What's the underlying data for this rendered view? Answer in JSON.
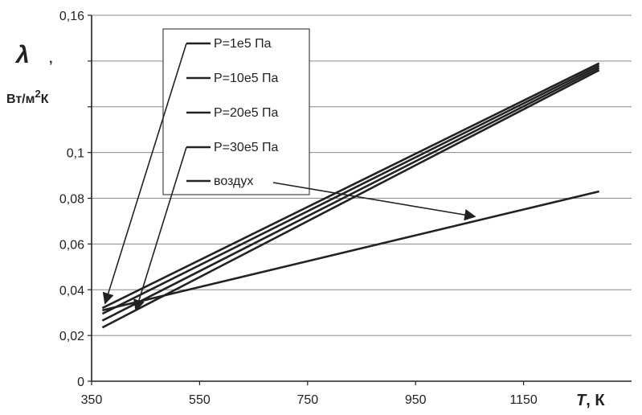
{
  "chart_data": {
    "type": "line",
    "x_axis": {
      "label_symbol": "T",
      "label_unit": ", К",
      "range": [
        350,
        1350
      ],
      "ticks": [
        "350",
        "550",
        "750",
        "950",
        "1150"
      ],
      "tick_values": [
        350,
        550,
        750,
        950,
        1150
      ]
    },
    "y_axis": {
      "label_symbol": "λ",
      "label_comma": ",",
      "label_unit_main": "Вт/м",
      "label_unit_sup": "2",
      "label_unit_tail": "К",
      "range": [
        0,
        0.16
      ],
      "ticks": [
        "0",
        "0,02",
        "0,04",
        "0,06",
        "0,08",
        "0,1",
        "",
        "",
        "0,16"
      ],
      "tick_values": [
        0,
        0.02,
        0.04,
        0.06,
        0.08,
        0.1,
        0.12,
        0.14,
        0.16
      ]
    },
    "grid": "horizontal",
    "legend_position": "top-left",
    "series": [
      {
        "name": "P=1e5 Па",
        "x": [
          370,
          1290
        ],
        "y": [
          0.0235,
          0.136
        ]
      },
      {
        "name": "P=10e5 Па",
        "x": [
          370,
          1290
        ],
        "y": [
          0.0265,
          0.137
        ]
      },
      {
        "name": "P=20e5 Па",
        "x": [
          370,
          1290
        ],
        "y": [
          0.0295,
          0.138
        ]
      },
      {
        "name": "P=30e5 Па",
        "x": [
          370,
          1290
        ],
        "y": [
          0.032,
          0.139
        ]
      },
      {
        "name": "воздух",
        "x": [
          370,
          1290
        ],
        "y": [
          0.031,
          0.083
        ]
      }
    ],
    "annotations": [
      {
        "type": "arrow",
        "from": "P=1e5 Па",
        "to_x": 375,
        "to_y": 0.034
      },
      {
        "type": "arrow",
        "from": "P=30e5 Па",
        "to_x": 432,
        "to_y": 0.031
      },
      {
        "type": "arrow",
        "from": "воздух",
        "to_x": 1060,
        "to_y": 0.072
      }
    ],
    "colors": {
      "line": "#222222",
      "grid": "#8a8a8a",
      "background": "#ffffff"
    }
  }
}
